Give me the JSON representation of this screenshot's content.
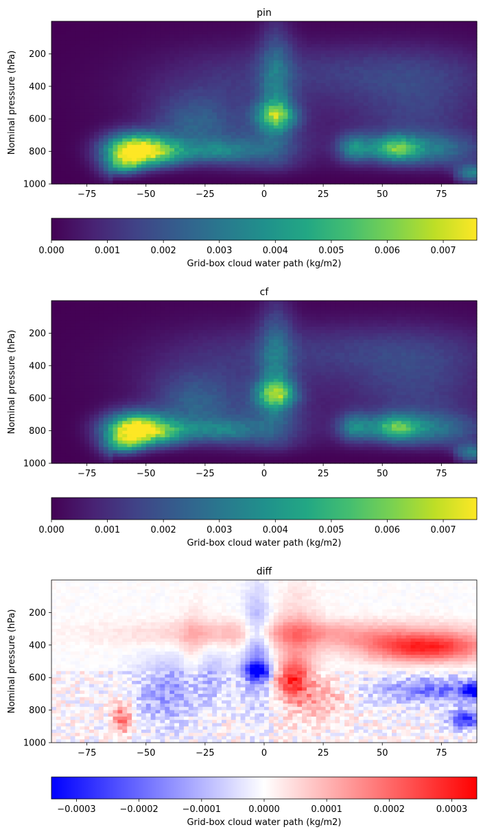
{
  "chart_data": [
    {
      "type": "heatmap",
      "title": "pin",
      "xlabel": "",
      "ylabel": "Nominal pressure (hPa)",
      "xlim": [
        -90,
        90
      ],
      "ylim": [
        1000,
        0
      ],
      "xticks": [
        -75,
        -50,
        -25,
        0,
        25,
        50,
        75
      ],
      "xtick_labels": [
        "−75",
        "−50",
        "−25",
        "0",
        "25",
        "50",
        "75"
      ],
      "yticks": [
        200,
        400,
        600,
        800,
        1000
      ],
      "ytick_labels": [
        "200",
        "400",
        "600",
        "800",
        "1000"
      ],
      "colormap": "viridis",
      "colorbar": {
        "label": "Grid-box cloud water path (kg/m2)",
        "range": [
          0,
          0.0076
        ],
        "ticks": [
          0,
          0.001,
          0.002,
          0.003,
          0.004,
          0.005,
          0.006,
          0.007
        ],
        "tick_labels": [
          "0.000",
          "0.001",
          "0.002",
          "0.003",
          "0.004",
          "0.005",
          "0.006",
          "0.007"
        ]
      },
      "features": [
        {
          "lat": -55,
          "p": 790,
          "value": 0.0075
        },
        {
          "lat": 5,
          "p": 580,
          "value": 0.0042
        },
        {
          "lat": 55,
          "p": 780,
          "value": 0.0038
        },
        {
          "lat": 38,
          "p": 780,
          "value": 0.003
        },
        {
          "lat": -20,
          "p": 800,
          "value": 0.0022
        },
        {
          "lat": 88,
          "p": 940,
          "value": 0.0035
        }
      ]
    },
    {
      "type": "heatmap",
      "title": "cf",
      "xlabel": "",
      "ylabel": "Nominal pressure (hPa)",
      "xlim": [
        -90,
        90
      ],
      "ylim": [
        1000,
        0
      ],
      "xticks": [
        -75,
        -50,
        -25,
        0,
        25,
        50,
        75
      ],
      "xtick_labels": [
        "−75",
        "−50",
        "−25",
        "0",
        "25",
        "50",
        "75"
      ],
      "yticks": [
        200,
        400,
        600,
        800,
        1000
      ],
      "ytick_labels": [
        "200",
        "400",
        "600",
        "800",
        "1000"
      ],
      "colormap": "viridis",
      "colorbar": {
        "label": "Grid-box cloud water path (kg/m2)",
        "range": [
          0,
          0.0076
        ],
        "ticks": [
          0,
          0.001,
          0.002,
          0.003,
          0.004,
          0.005,
          0.006,
          0.007
        ],
        "tick_labels": [
          "0.000",
          "0.001",
          "0.002",
          "0.003",
          "0.004",
          "0.005",
          "0.006",
          "0.007"
        ]
      },
      "features": [
        {
          "lat": -55,
          "p": 790,
          "value": 0.0074
        },
        {
          "lat": 5,
          "p": 575,
          "value": 0.0044
        },
        {
          "lat": 55,
          "p": 780,
          "value": 0.0036
        },
        {
          "lat": 38,
          "p": 780,
          "value": 0.0028
        },
        {
          "lat": -20,
          "p": 800,
          "value": 0.0021
        },
        {
          "lat": 88,
          "p": 940,
          "value": 0.0033
        }
      ]
    },
    {
      "type": "heatmap",
      "title": "diff",
      "xlabel": "",
      "ylabel": "Nominal pressure (hPa)",
      "xlim": [
        -90,
        90
      ],
      "ylim": [
        1000,
        0
      ],
      "xticks": [
        -75,
        -50,
        -25,
        0,
        25,
        50,
        75
      ],
      "xtick_labels": [
        "−75",
        "−50",
        "−25",
        "0",
        "25",
        "50",
        "75"
      ],
      "yticks": [
        200,
        400,
        600,
        800,
        1000
      ],
      "ytick_labels": [
        "200",
        "400",
        "600",
        "800",
        "1000"
      ],
      "colormap": "bwr",
      "colorbar": {
        "label": "Grid-box cloud water path (kg/m2)",
        "range": [
          -0.00034,
          0.00034
        ],
        "ticks": [
          -0.0003,
          -0.0002,
          -0.0001,
          0,
          0.0001,
          0.0002,
          0.0003
        ],
        "tick_labels": [
          "−0.0003",
          "−0.0002",
          "−0.0001",
          "0.0000",
          "0.0001",
          "0.0002",
          "0.0003"
        ]
      },
      "features": [
        {
          "lat": 68,
          "p": 420,
          "value": 0.00028
        },
        {
          "lat": -3,
          "p": 560,
          "value": -0.0003
        },
        {
          "lat": 12,
          "p": 620,
          "value": 0.00022
        },
        {
          "lat": -60,
          "p": 850,
          "value": 0.0002
        },
        {
          "lat": 88,
          "p": 680,
          "value": -0.00032
        },
        {
          "lat": 85,
          "p": 860,
          "value": -0.00028
        },
        {
          "lat": -40,
          "p": 700,
          "value": -0.00012
        }
      ]
    }
  ]
}
